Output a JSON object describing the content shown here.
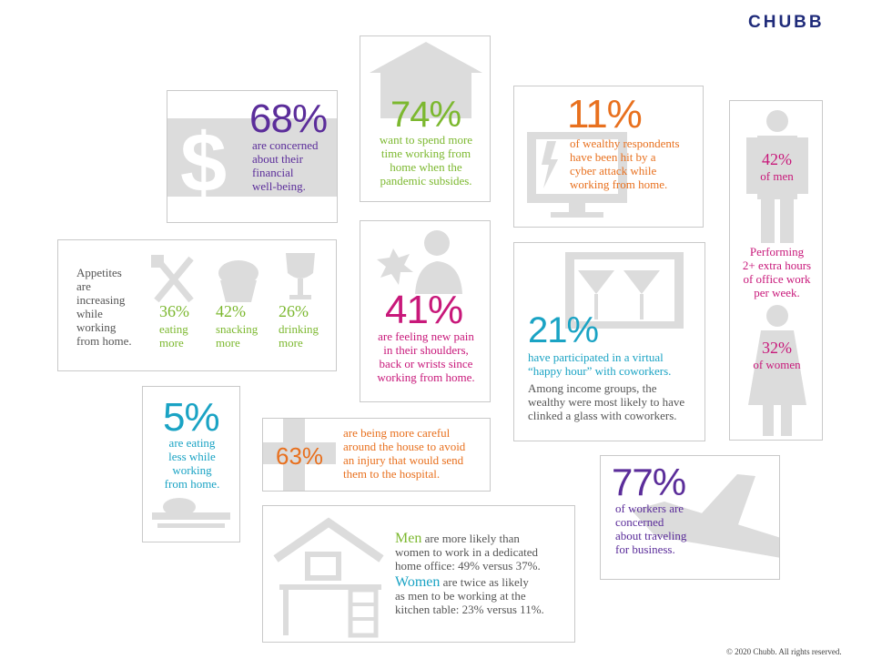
{
  "brand": {
    "logo": "CHUBB",
    "logo_color": "#1f2b7a"
  },
  "colors": {
    "purple": "#5b2d9a",
    "green": "#7cb82f",
    "orange": "#e8701e",
    "magenta": "#c8187a",
    "cyan": "#1aa3c4",
    "icon_grey": "#dcdcdc"
  },
  "financial": {
    "percent": "68%",
    "lines": [
      "are concerned",
      "about their",
      "financial",
      "well-being."
    ],
    "icon": "dollar-sign-icon"
  },
  "spend_time": {
    "percent": "74%",
    "lines": [
      "want to spend more",
      "time working from",
      "home when the",
      "pandemic subsides."
    ],
    "icon": "house-icon"
  },
  "cyber": {
    "percent": "11%",
    "lines": [
      "of wealthy respondents",
      "have been hit by a",
      "cyber attack while",
      "working from home."
    ],
    "icon": "monitor-lightning-icon"
  },
  "hours": {
    "men_percent": "42%",
    "men_label": "of men",
    "middle_lines": [
      "Performing",
      "2+ extra hours",
      "of office work",
      "per week."
    ],
    "women_percent": "32%",
    "women_label": "of women",
    "icons": [
      "man-icon",
      "woman-icon"
    ]
  },
  "appetite": {
    "intro_lines": [
      "Appetites",
      "are",
      "increasing",
      "while",
      "working",
      "from home."
    ],
    "items": [
      {
        "percent": "36%",
        "lines": [
          "eating",
          "more"
        ],
        "icon": "fork-knife-icon"
      },
      {
        "percent": "42%",
        "lines": [
          "snacking",
          "more"
        ],
        "icon": "cupcake-icon"
      },
      {
        "percent": "26%",
        "lines": [
          "drinking",
          "more"
        ],
        "icon": "wine-glass-icon"
      }
    ]
  },
  "pain": {
    "percent": "41%",
    "lines": [
      "are feeling new pain",
      "in their shoulders,",
      "back or wrists since",
      "working from home."
    ],
    "icon": "person-pain-icon"
  },
  "happy_hour": {
    "percent": "21%",
    "lines": [
      "have participated in a virtual",
      "“happy hour” with coworkers."
    ],
    "sub_lines": [
      "Among income groups, the",
      "wealthy were most likely to have",
      "clinked a glass with coworkers."
    ],
    "icon": "cocktail-screen-icon"
  },
  "eating_less": {
    "percent": "5%",
    "lines": [
      "are eating",
      "less while",
      "working",
      "from home."
    ],
    "icon": "plate-icon"
  },
  "careful": {
    "percent": "63%",
    "lines": [
      "are being more careful",
      "around the house to avoid",
      "an injury that would send",
      "them to the hospital."
    ],
    "icon": "medical-cross-icon"
  },
  "travel": {
    "percent": "77%",
    "lines": [
      "of workers are",
      "concerned",
      "about traveling",
      "for business."
    ],
    "icon": "airplane-icon"
  },
  "office": {
    "men_word": "Men",
    "men_lines": [
      " are more likely than",
      "women to work in a dedicated",
      "home office: 49% versus 37%."
    ],
    "women_word": "Women",
    "women_lines": [
      " are twice as likely",
      "as men to be working at the",
      "kitchen table: 23% versus 11%."
    ],
    "icon": "home-desk-icon"
  },
  "footer": {
    "copyright": "© 2020 Chubb.  All rights reserved."
  }
}
